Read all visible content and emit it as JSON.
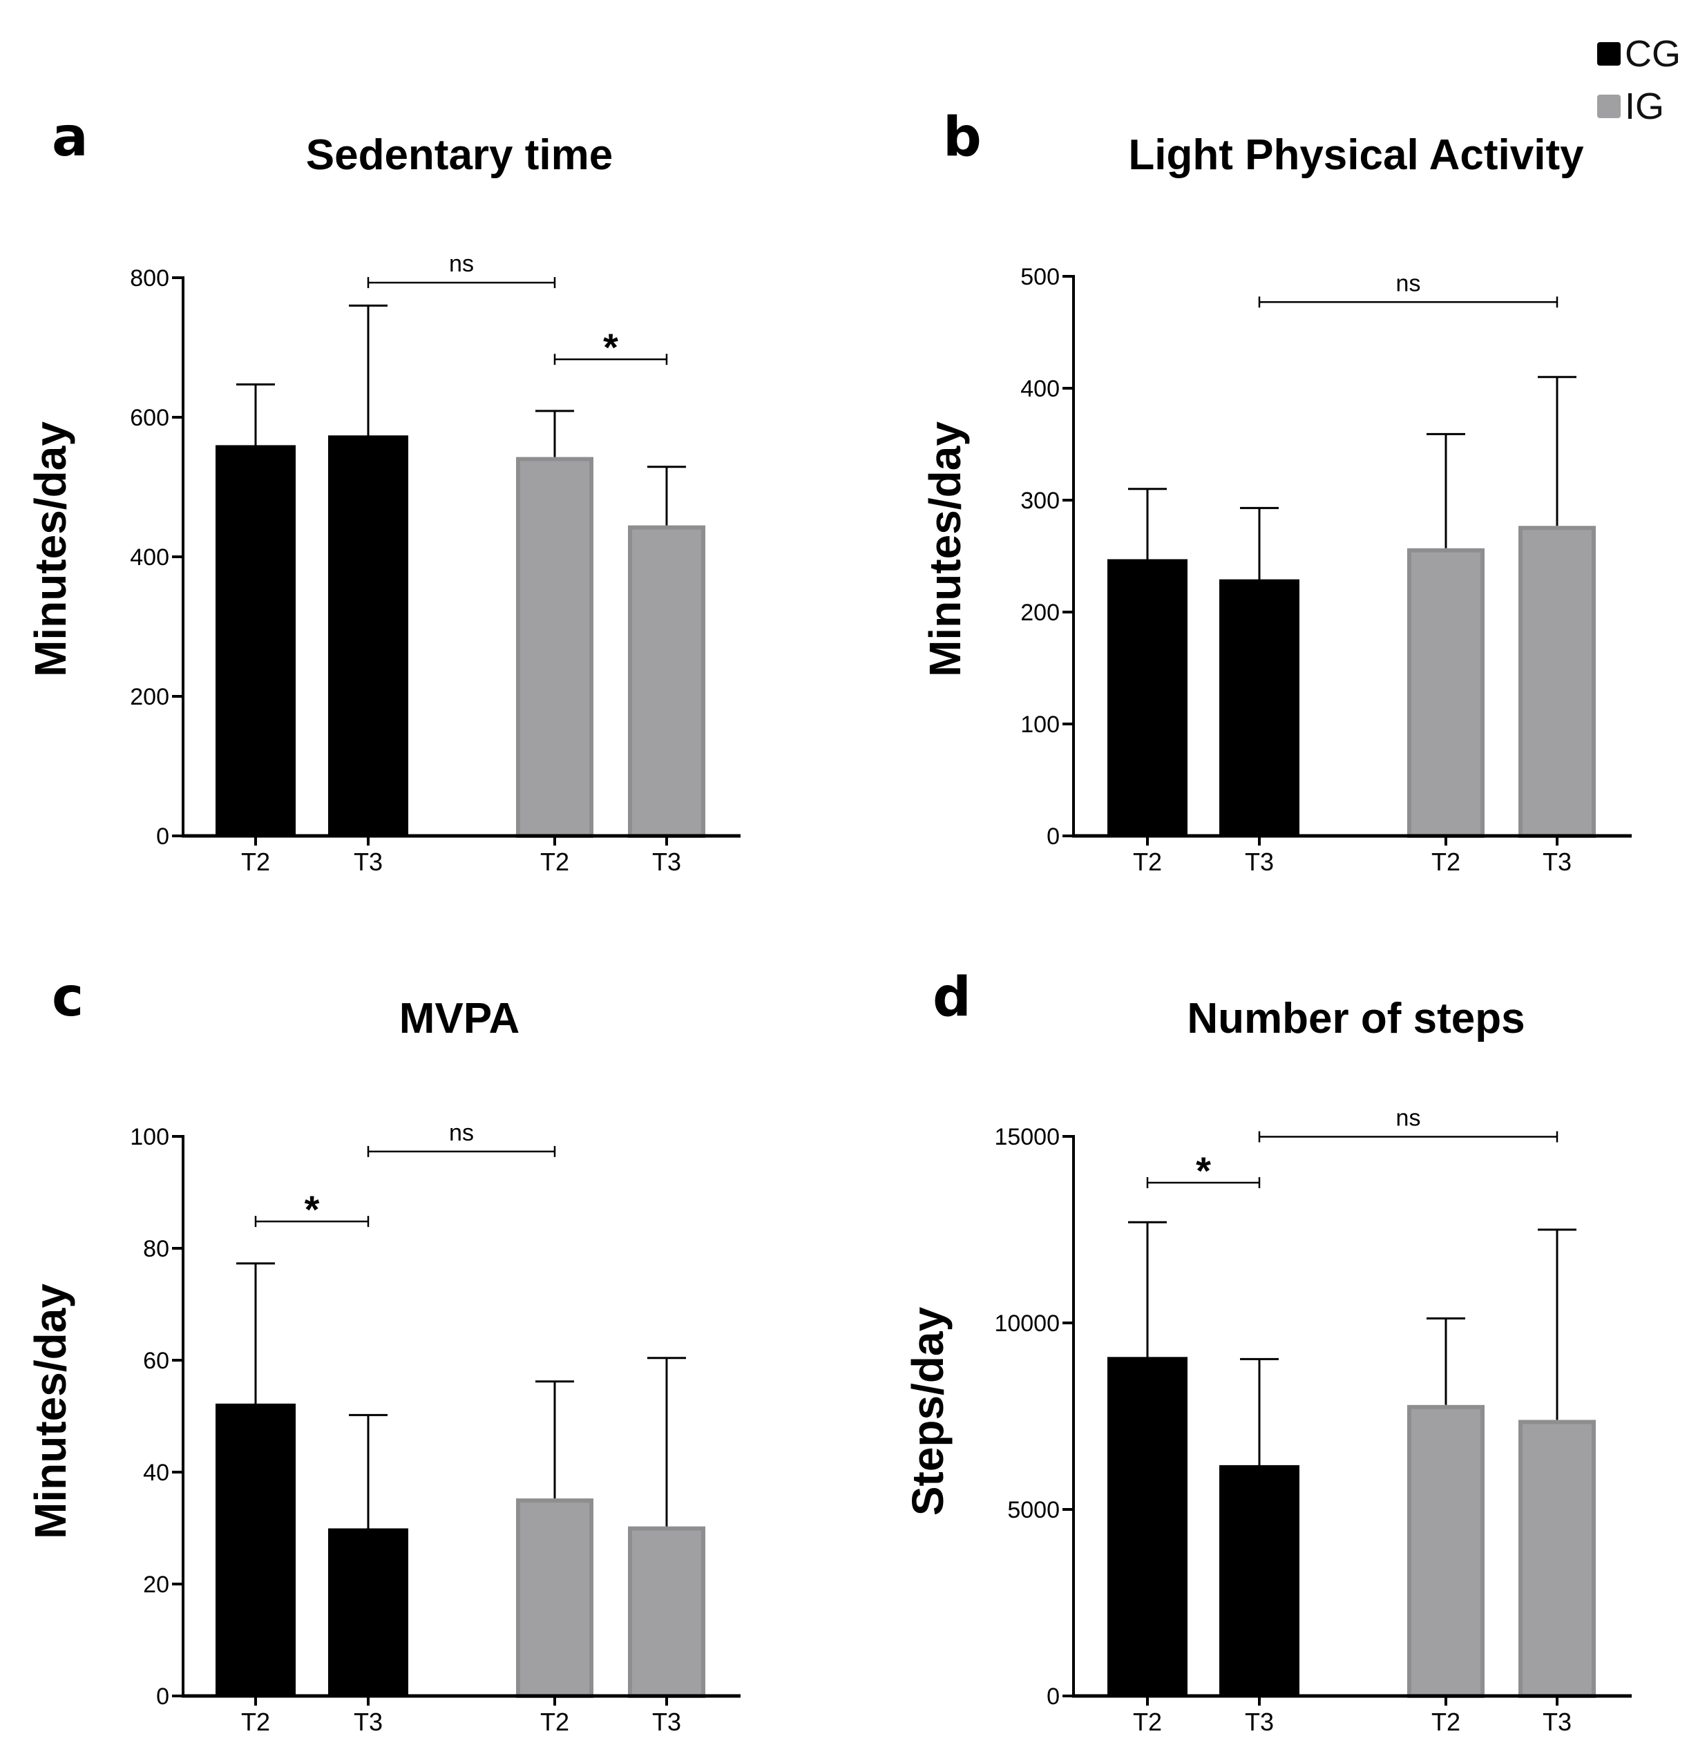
{
  "legend": {
    "items": [
      {
        "label": "CG",
        "color": "#000000"
      },
      {
        "label": "IG",
        "color": "#a0a0a2"
      }
    ]
  },
  "colors": {
    "cg": "#000000",
    "ig": "#a0a0a2",
    "ig_edge": "#8e8e90"
  },
  "chart_data": [
    {
      "panel": "a",
      "type": "bar",
      "title": "Sedentary time",
      "xlabel": "",
      "ylabel": "Minutes/day",
      "ylim": [
        0,
        800
      ],
      "yticks": [
        0,
        200,
        400,
        600,
        800
      ],
      "categories": [
        "T2",
        "T3",
        "T2",
        "T3"
      ],
      "groups": [
        "CG",
        "CG",
        "IG",
        "IG"
      ],
      "values": [
        558,
        572,
        543,
        445
      ],
      "error_upper": [
        647,
        760,
        609,
        529
      ],
      "comparisons": [
        {
          "from": 1,
          "to": 2,
          "label": "ns",
          "level": 793
        },
        {
          "from": 2,
          "to": 3,
          "label": "*",
          "level": 683
        }
      ]
    },
    {
      "panel": "b",
      "type": "bar",
      "title": "Light Physical Activity",
      "xlabel": "",
      "ylabel": "Minutes/day",
      "ylim": [
        0,
        500
      ],
      "yticks": [
        0,
        100,
        200,
        300,
        400,
        500
      ],
      "categories": [
        "T2",
        "T3",
        "T2",
        "T3"
      ],
      "groups": [
        "CG",
        "CG",
        "IG",
        "IG"
      ],
      "values": [
        246,
        228,
        257,
        277
      ],
      "error_upper": [
        310,
        293,
        359,
        410
      ],
      "comparisons": [
        {
          "from": 1,
          "to": 3,
          "label": "ns",
          "level": 477
        }
      ]
    },
    {
      "panel": "c",
      "type": "bar",
      "title": "MVPA",
      "xlabel": "",
      "ylabel": "Minutes/day",
      "ylim": [
        0,
        100
      ],
      "yticks": [
        0,
        20,
        40,
        60,
        80,
        100
      ],
      "categories": [
        "T2",
        "T3",
        "T2",
        "T3"
      ],
      "groups": [
        "CG",
        "CG",
        "IG",
        "IG"
      ],
      "values": [
        52,
        29.7,
        35.3,
        30.3
      ],
      "error_upper": [
        77.3,
        50.2,
        56.2,
        60.4
      ],
      "comparisons": [
        {
          "from": 1,
          "to": 2,
          "label": "ns",
          "level": 97.3
        },
        {
          "from": 0,
          "to": 1,
          "label": "*",
          "level": 84.8
        }
      ]
    },
    {
      "panel": "d",
      "type": "bar",
      "title": "Number of steps",
      "xlabel": "",
      "ylabel": "Steps/day",
      "ylim": [
        0,
        15000
      ],
      "yticks": [
        0,
        5000,
        10000,
        15000
      ],
      "categories": [
        "T2",
        "T3",
        "T2",
        "T3"
      ],
      "groups": [
        "CG",
        "CG",
        "IG",
        "IG"
      ],
      "values": [
        9050,
        6150,
        7800,
        7400
      ],
      "error_upper": [
        12700,
        9030,
        10120,
        12500
      ],
      "comparisons": [
        {
          "from": 1,
          "to": 3,
          "label": "ns",
          "level": 14990
        },
        {
          "from": 0,
          "to": 1,
          "label": "*",
          "level": 13760
        }
      ]
    }
  ]
}
